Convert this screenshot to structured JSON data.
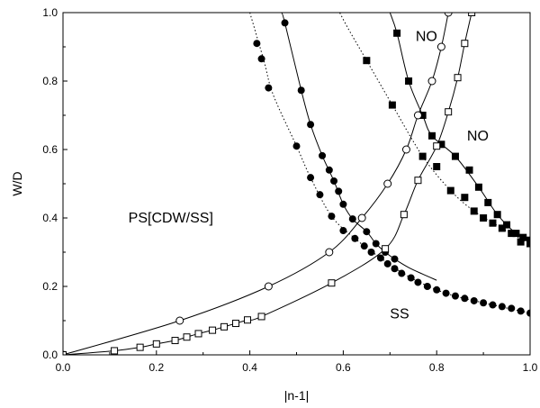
{
  "chart_data": {
    "type": "scatter",
    "xlabel": "|n-1|",
    "ylabel": "W/D",
    "xlim": [
      0,
      1
    ],
    "ylim": [
      0,
      1
    ],
    "grid": false,
    "x_ticks": [
      "0.0",
      "0.2",
      "0.4",
      "0.6",
      "0.8",
      "1.0"
    ],
    "y_ticks": [
      "0.0",
      "0.2",
      "0.4",
      "0.6",
      "0.8",
      "1.0"
    ],
    "annotations": [
      {
        "text": "PS[CDW/SS]",
        "x": 0.14,
        "y": 0.4
      },
      {
        "text": "SS",
        "x": 0.7,
        "y": 0.12
      },
      {
        "text": "NO",
        "x": 0.755,
        "y": 0.93
      },
      {
        "text": "NO",
        "x": 0.865,
        "y": 0.64
      }
    ],
    "series": [
      {
        "marker": "filled-circle",
        "line": "dotted",
        "points": [
          [
            0.415,
            0.91
          ],
          [
            0.425,
            0.865
          ],
          [
            0.44,
            0.78
          ],
          [
            0.5,
            0.61
          ],
          [
            0.53,
            0.518
          ],
          [
            0.55,
            0.468
          ],
          [
            0.575,
            0.405
          ],
          [
            0.6,
            0.363
          ],
          [
            0.625,
            0.34
          ],
          [
            0.645,
            0.318
          ],
          [
            0.66,
            0.3
          ],
          [
            0.68,
            0.283
          ],
          [
            0.695,
            0.266
          ],
          [
            0.71,
            0.252
          ],
          [
            0.725,
            0.238
          ],
          [
            0.745,
            0.225
          ],
          [
            0.76,
            0.212
          ],
          [
            0.78,
            0.2
          ],
          [
            0.8,
            0.19
          ],
          [
            0.82,
            0.18
          ],
          [
            0.84,
            0.172
          ],
          [
            0.86,
            0.165
          ],
          [
            0.88,
            0.158
          ],
          [
            0.9,
            0.152
          ],
          [
            0.92,
            0.146
          ],
          [
            0.94,
            0.141
          ],
          [
            0.96,
            0.136
          ],
          [
            0.98,
            0.128
          ],
          [
            1.0,
            0.122
          ]
        ],
        "curve": [
          [
            0.4,
            1.0
          ],
          [
            0.43,
            0.86
          ],
          [
            0.45,
            0.76
          ],
          [
            0.5,
            0.61
          ],
          [
            0.53,
            0.518
          ],
          [
            0.575,
            0.405
          ],
          [
            0.625,
            0.34
          ],
          [
            0.68,
            0.283
          ],
          [
            0.745,
            0.225
          ],
          [
            0.82,
            0.18
          ],
          [
            0.9,
            0.152
          ],
          [
            1.0,
            0.122
          ]
        ]
      },
      {
        "marker": "filled-circle",
        "line": "solid",
        "points": [
          [
            0.475,
            0.97
          ],
          [
            0.51,
            0.773
          ],
          [
            0.53,
            0.673
          ],
          [
            0.555,
            0.582
          ],
          [
            0.57,
            0.54
          ],
          [
            0.58,
            0.508
          ],
          [
            0.59,
            0.478
          ],
          [
            0.6,
            0.44
          ],
          [
            0.62,
            0.397
          ],
          [
            0.65,
            0.36
          ],
          [
            0.67,
            0.325
          ],
          [
            0.69,
            0.3
          ],
          [
            0.71,
            0.28
          ]
        ],
        "curve": [
          [
            0.468,
            1.0
          ],
          [
            0.475,
            0.97
          ],
          [
            0.51,
            0.773
          ],
          [
            0.53,
            0.673
          ],
          [
            0.555,
            0.582
          ],
          [
            0.58,
            0.508
          ],
          [
            0.6,
            0.44
          ],
          [
            0.62,
            0.397
          ],
          [
            0.65,
            0.36
          ],
          [
            0.67,
            0.325
          ],
          [
            0.69,
            0.3
          ],
          [
            0.71,
            0.28
          ],
          [
            0.74,
            0.255
          ],
          [
            0.77,
            0.236
          ],
          [
            0.8,
            0.218
          ]
        ]
      },
      {
        "marker": "filled-square",
        "line": "dotted",
        "points": [
          [
            0.65,
            0.86
          ],
          [
            0.705,
            0.73
          ],
          [
            0.77,
            0.58
          ],
          [
            0.8,
            0.55
          ],
          [
            0.83,
            0.48
          ],
          [
            0.86,
            0.46
          ],
          [
            0.88,
            0.42
          ],
          [
            0.9,
            0.4
          ],
          [
            0.92,
            0.385
          ],
          [
            0.94,
            0.37
          ],
          [
            0.96,
            0.355
          ],
          [
            0.98,
            0.33
          ],
          [
            1.0,
            0.325
          ]
        ],
        "curve": [
          [
            0.5,
            1.3
          ],
          [
            0.55,
            1.12
          ],
          [
            0.6,
            0.98
          ],
          [
            0.65,
            0.86
          ],
          [
            0.705,
            0.73
          ],
          [
            0.77,
            0.58
          ],
          [
            0.83,
            0.48
          ],
          [
            0.88,
            0.42
          ],
          [
            0.94,
            0.37
          ],
          [
            1.0,
            0.325
          ]
        ]
      },
      {
        "marker": "filled-square",
        "line": "solid",
        "points": [
          [
            0.715,
            0.94
          ],
          [
            0.74,
            0.8
          ],
          [
            0.77,
            0.7
          ],
          [
            0.79,
            0.64
          ],
          [
            0.81,
            0.615
          ],
          [
            0.84,
            0.58
          ],
          [
            0.87,
            0.54
          ],
          [
            0.89,
            0.49
          ],
          [
            0.91,
            0.445
          ],
          [
            0.93,
            0.41
          ],
          [
            0.95,
            0.38
          ],
          [
            0.97,
            0.355
          ],
          [
            0.985,
            0.343
          ],
          [
            1.0,
            0.335
          ]
        ],
        "curve": [
          [
            0.7,
            1.0
          ],
          [
            0.715,
            0.94
          ],
          [
            0.74,
            0.8
          ],
          [
            0.77,
            0.7
          ],
          [
            0.79,
            0.64
          ],
          [
            0.84,
            0.58
          ],
          [
            0.89,
            0.49
          ],
          [
            0.93,
            0.41
          ],
          [
            0.97,
            0.355
          ],
          [
            1.0,
            0.335
          ]
        ]
      },
      {
        "marker": "open-circle",
        "line": "solid",
        "points": [
          [
            0.0,
            0.0
          ],
          [
            0.25,
            0.1
          ],
          [
            0.44,
            0.2
          ],
          [
            0.57,
            0.3
          ],
          [
            0.64,
            0.4
          ],
          [
            0.695,
            0.5
          ],
          [
            0.735,
            0.6
          ],
          [
            0.76,
            0.7
          ],
          [
            0.79,
            0.8
          ],
          [
            0.81,
            0.9
          ],
          [
            0.825,
            1.0
          ]
        ]
      },
      {
        "marker": "open-square",
        "line": "solid",
        "points": [
          [
            0.0,
            0.0
          ],
          [
            0.11,
            0.012
          ],
          [
            0.165,
            0.022
          ],
          [
            0.2,
            0.032
          ],
          [
            0.24,
            0.042
          ],
          [
            0.265,
            0.052
          ],
          [
            0.29,
            0.062
          ],
          [
            0.32,
            0.072
          ],
          [
            0.345,
            0.082
          ],
          [
            0.37,
            0.092
          ],
          [
            0.395,
            0.102
          ],
          [
            0.425,
            0.112
          ],
          [
            0.575,
            0.21
          ],
          [
            0.69,
            0.31
          ],
          [
            0.73,
            0.41
          ],
          [
            0.76,
            0.51
          ],
          [
            0.8,
            0.61
          ],
          [
            0.825,
            0.71
          ],
          [
            0.845,
            0.81
          ],
          [
            0.86,
            0.91
          ],
          [
            0.875,
            1.0
          ]
        ]
      }
    ]
  }
}
